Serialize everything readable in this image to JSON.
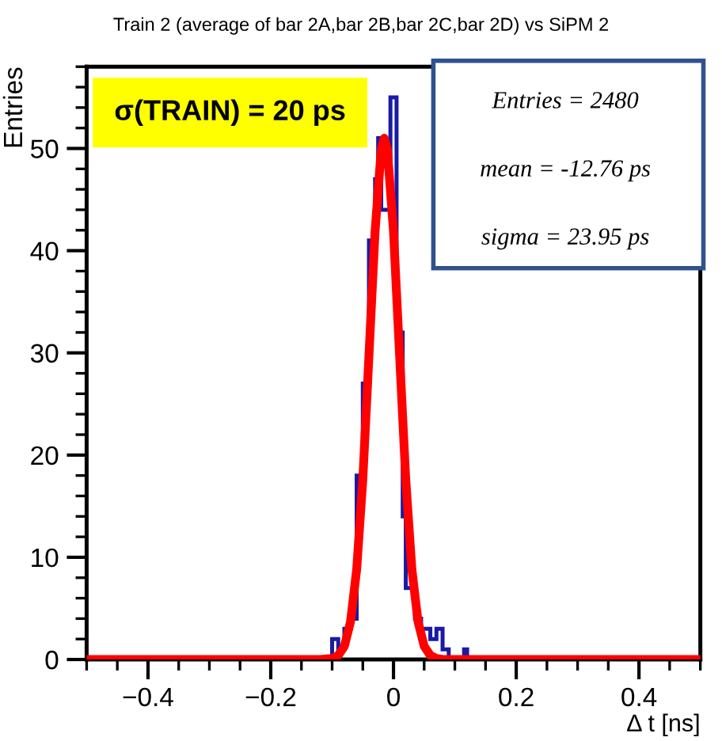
{
  "chart_data": {
    "type": "histogram",
    "title": "Train 2 (average of bar 2A,bar 2B,bar 2C,bar 2D) vs SiPM 2",
    "xlabel": "Δ t [ns]",
    "ylabel": "Entries",
    "bins": [
      -0.1,
      -0.095,
      -0.09,
      -0.085,
      -0.08,
      -0.075,
      -0.07,
      -0.065,
      -0.06,
      -0.055,
      -0.05,
      -0.045,
      -0.04,
      -0.035,
      -0.03,
      -0.025,
      -0.02,
      -0.015,
      -0.01,
      -0.005,
      0,
      0.005,
      0.01,
      0.015,
      0.02,
      0.025,
      0.03,
      0.035,
      0.04,
      0.045,
      0.05,
      0.055,
      0.06,
      0.065,
      0.07,
      0.075,
      0.08,
      0.085,
      0.09,
      0.095,
      0.1,
      0.105,
      0.11,
      0.115,
      0.12,
      0.125
    ],
    "values": [
      2,
      2,
      1,
      1,
      3,
      3,
      4,
      4,
      18,
      18,
      27,
      27,
      41,
      41,
      47,
      51,
      44,
      44,
      44,
      55,
      55,
      32,
      32,
      14,
      7,
      7,
      7,
      4,
      4,
      3,
      3,
      3,
      2,
      2,
      3,
      3,
      1,
      1,
      0,
      0,
      0,
      0,
      0,
      1,
      0
    ],
    "color": "#1a1aa6",
    "series": [
      {
        "type": "line",
        "color": "#ff0000",
        "x": [
          -0.5,
          -0.12,
          -0.1,
          -0.09,
          -0.08,
          -0.07,
          -0.06,
          -0.05,
          -0.04,
          -0.03,
          -0.02,
          -0.015,
          -0.01,
          0,
          0.01,
          0.02,
          0.03,
          0.04,
          0.05,
          0.06,
          0.07,
          0.08,
          0.1,
          0.5
        ],
        "values": [
          0,
          0,
          0.1,
          0.4,
          1.3,
          3.7,
          8.8,
          17.6,
          29.7,
          41.9,
          49.9,
          51,
          49.9,
          41.9,
          29.7,
          17.6,
          8.8,
          3.7,
          1.3,
          0.4,
          0.1,
          0,
          0,
          0
        ]
      }
    ],
    "xlim": [
      -0.5,
      0.5
    ],
    "ylim": [
      0,
      58
    ],
    "xticks": [
      {
        "value": -0.4,
        "label": "−0.4"
      },
      {
        "value": -0.2,
        "label": "−0.2"
      },
      0,
      0.2,
      0.4
    ],
    "yticks": [
      0,
      10,
      20,
      30,
      40,
      50
    ],
    "grid": false,
    "legend": false,
    "annotations": [
      "σ(TRAIN) = 20 ps",
      "Entries = 2480",
      "mean = -12.76 ps",
      "sigma = 23.95 ps"
    ]
  }
}
